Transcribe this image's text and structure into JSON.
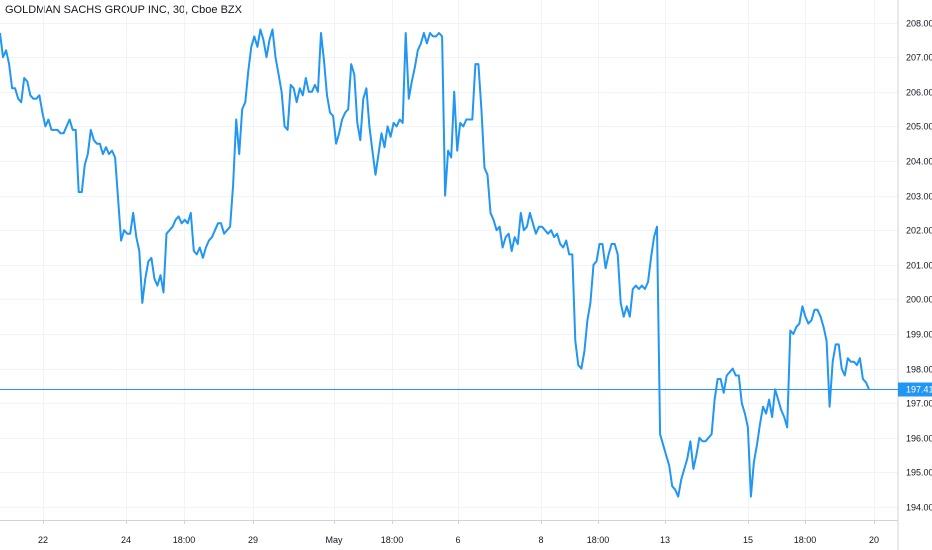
{
  "chart_data": {
    "type": "line",
    "title": "GOLDMAN SACHS GROUP INC, 30, Cboe BZX",
    "ylim": [
      193.6,
      208.4
    ],
    "y_ticks": [
      "194.00",
      "195.00",
      "196.00",
      "197.00",
      "198.00",
      "199.00",
      "200.00",
      "201.00",
      "202.00",
      "203.00",
      "204.00",
      "205.00",
      "206.00",
      "207.00",
      "208.00"
    ],
    "x_ticks": [
      "22",
      "24",
      "18:00",
      "29",
      "May",
      "18:00",
      "6",
      "8",
      "18:00",
      "13",
      "15",
      "18:00",
      "20"
    ],
    "last_price": "197.41",
    "grid": true,
    "series": [
      {
        "color": "#2196f3",
        "values": [
          207.7,
          207.0,
          207.2,
          206.8,
          206.1,
          206.1,
          205.8,
          205.7,
          206.4,
          206.3,
          205.9,
          205.8,
          205.8,
          205.9,
          205.4,
          205.0,
          205.2,
          204.9,
          204.9,
          204.9,
          204.8,
          204.8,
          205.0,
          205.2,
          204.9,
          204.9,
          203.1,
          203.1,
          203.9,
          204.2,
          204.9,
          204.6,
          204.5,
          204.5,
          204.2,
          204.4,
          204.2,
          204.3,
          204.1,
          202.9,
          201.7,
          202.0,
          201.9,
          201.9,
          202.5,
          201.8,
          201.4,
          199.9,
          200.6,
          201.1,
          201.2,
          200.6,
          200.4,
          200.7,
          200.2,
          201.9,
          202.0,
          202.1,
          202.3,
          202.4,
          202.2,
          202.3,
          202.2,
          202.5,
          201.4,
          201.3,
          201.5,
          201.2,
          201.5,
          201.7,
          201.8,
          202.0,
          202.2,
          202.2,
          201.9,
          202.0,
          202.1,
          203.3,
          205.2,
          204.2,
          205.5,
          205.7,
          206.6,
          207.3,
          207.6,
          207.3,
          207.8,
          207.5,
          207.0,
          207.5,
          207.8,
          207.0,
          206.5,
          206.0,
          205.0,
          204.9,
          206.2,
          206.1,
          205.7,
          206.1,
          205.9,
          206.4,
          206.0,
          206.0,
          206.2,
          206.0,
          207.7,
          206.9,
          205.9,
          205.4,
          205.3,
          204.5,
          204.8,
          205.2,
          205.4,
          205.5,
          206.8,
          206.5,
          205.1,
          204.6,
          205.8,
          206.1,
          205.0,
          204.3,
          203.6,
          204.2,
          204.8,
          204.4,
          205.0,
          204.7,
          205.1,
          205.0,
          205.2,
          205.1,
          207.7,
          205.8,
          206.3,
          206.7,
          207.2,
          207.4,
          207.7,
          207.4,
          207.7,
          207.6,
          207.6,
          207.7,
          207.6,
          203.0,
          204.3,
          204.1,
          206.0,
          204.3,
          205.1,
          205.0,
          205.2,
          205.2,
          205.2,
          206.8,
          206.8,
          205.5,
          203.8,
          203.6,
          202.5,
          202.3,
          202.0,
          202.1,
          201.5,
          201.8,
          201.9,
          201.4,
          201.8,
          201.6,
          202.5,
          202.0,
          202.1,
          202.5,
          202.2,
          201.9,
          202.1,
          202.1,
          202.0,
          201.9,
          202.0,
          201.8,
          201.9,
          201.6,
          201.5,
          201.7,
          201.3,
          201.3,
          198.8,
          198.1,
          198.0,
          198.5,
          199.4,
          199.9,
          201.0,
          201.1,
          201.6,
          201.6,
          200.9,
          201.3,
          201.6,
          201.6,
          201.3,
          199.9,
          199.5,
          199.8,
          199.5,
          200.3,
          200.4,
          200.3,
          200.4,
          200.3,
          200.5,
          201.2,
          201.8,
          202.1,
          196.1,
          195.8,
          195.5,
          195.2,
          194.6,
          194.5,
          194.3,
          194.8,
          195.1,
          195.4,
          195.9,
          195.1,
          195.5,
          196.0,
          195.9,
          195.9,
          196.0,
          196.1,
          197.1,
          197.7,
          197.7,
          197.3,
          197.8,
          197.9,
          198.0,
          197.8,
          197.8,
          197.0,
          196.7,
          196.3,
          194.3,
          195.3,
          195.8,
          196.4,
          196.9,
          196.7,
          197.1,
          196.6,
          197.4,
          197.1,
          196.8,
          196.6,
          196.3,
          199.1,
          199.0,
          199.2,
          199.3,
          199.8,
          199.5,
          199.3,
          199.4,
          199.7,
          199.7,
          199.5,
          199.2,
          198.8,
          196.9,
          198.2,
          198.7,
          198.7,
          198.0,
          197.8,
          198.3,
          198.2,
          198.2,
          198.1,
          198.3,
          197.7,
          197.6,
          197.4
        ]
      }
    ]
  }
}
